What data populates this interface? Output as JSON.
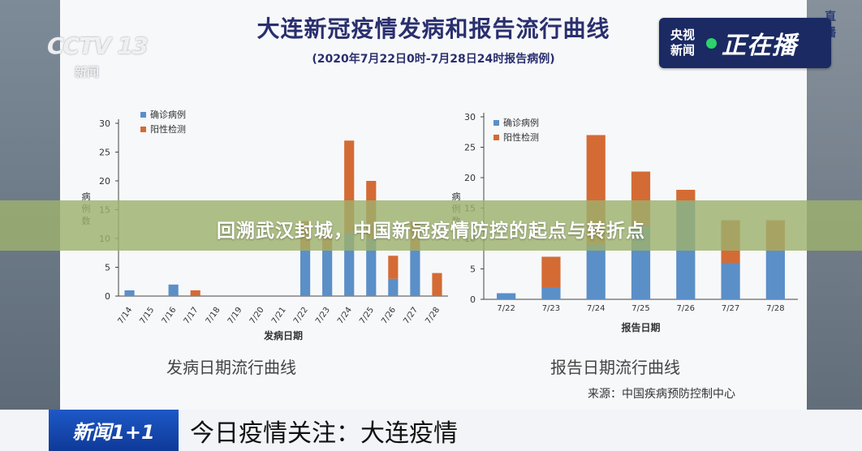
{
  "header": {
    "title": "大连新冠疫情发病和报告流行曲线",
    "subtitle": "(2020年7月22日0时-7月28日24时报告病例)"
  },
  "watermark": {
    "logo": "CCTV 13",
    "sub": "新闻"
  },
  "live_badge": {
    "line1": "央视",
    "line2": "新闻",
    "label": "正在播",
    "bg_text": "直播"
  },
  "colors": {
    "confirmed": "#5b8fc7",
    "positive": "#d46b35",
    "panel": "#f7f8fa",
    "live_dot": "#2bd36a",
    "overlay_band": "#9eb16e"
  },
  "chart_data": [
    {
      "type": "bar",
      "stacked": true,
      "categories": [
        "7/14",
        "7/15",
        "7/16",
        "7/17",
        "7/18",
        "7/19",
        "7/20",
        "7/21",
        "7/22",
        "7/23",
        "7/24",
        "7/25",
        "7/26",
        "7/27",
        "7/28"
      ],
      "series": [
        {
          "name": "确诊病例",
          "values": [
            1,
            0,
            2,
            0,
            0,
            0,
            0,
            0,
            8,
            8,
            11,
            10,
            3,
            8,
            0
          ]
        },
        {
          "name": "阳性检测",
          "values": [
            0,
            0,
            0,
            1,
            0,
            0,
            0,
            0,
            5,
            3,
            16,
            10,
            4,
            5,
            4
          ]
        }
      ],
      "ylabel": "病例数",
      "xlabel": "发病日期",
      "ylim": [
        0,
        30
      ],
      "yticks": [
        0,
        5,
        10,
        15,
        20,
        25,
        30
      ],
      "legend_position": "top-left",
      "caption": "发病日期流行曲线"
    },
    {
      "type": "bar",
      "stacked": true,
      "categories": [
        "7/22",
        "7/23",
        "7/24",
        "7/25",
        "7/26",
        "7/27",
        "7/28"
      ],
      "series": [
        {
          "name": "确诊病例",
          "values": [
            1,
            2,
            9,
            12,
            16,
            6,
            8
          ]
        },
        {
          "name": "阳性检测",
          "values": [
            0,
            5,
            18,
            9,
            2,
            7,
            5
          ]
        }
      ],
      "ylabel": "病例数",
      "xlabel": "报告日期",
      "ylim": [
        0,
        30
      ],
      "yticks": [
        0,
        5,
        10,
        15,
        20,
        25,
        30
      ],
      "legend_position": "top-left",
      "caption": "报告日期流行曲线"
    }
  ],
  "source": "来源：中国疾病预防控制中心",
  "overlay": "回溯武汉封城，中国新冠疫情防控的起点与转折点",
  "ticker": {
    "logo": "新闻1+1",
    "text": "今日疫情关注：大连疫情"
  }
}
